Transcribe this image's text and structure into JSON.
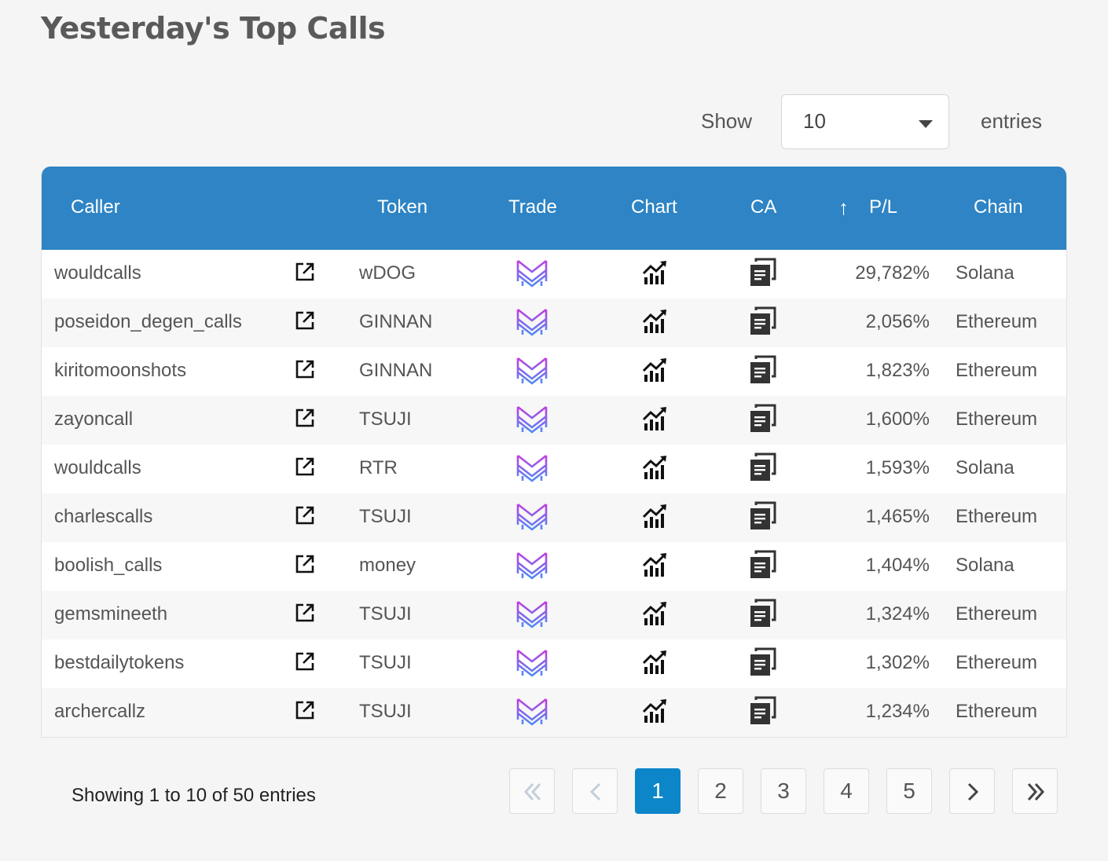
{
  "page": {
    "title": "Yesterday's Top Calls"
  },
  "length_menu": {
    "show_label": "Show",
    "selected": "10",
    "entries_label": "entries"
  },
  "table": {
    "headers": {
      "caller": "Caller",
      "token": "Token",
      "trade": "Trade",
      "chart": "Chart",
      "ca": "CA",
      "pl": "P/L",
      "chain": "Chain"
    },
    "sort_icon": "arrow-up-icon",
    "rows": [
      {
        "caller": "wouldcalls",
        "token": "wDOG",
        "pl": "29,782%",
        "chain": "Solana"
      },
      {
        "caller": "poseidon_degen_calls",
        "token": "GINNAN",
        "pl": "2,056%",
        "chain": "Ethereum"
      },
      {
        "caller": "kiritomoonshots",
        "token": "GINNAN",
        "pl": "1,823%",
        "chain": "Ethereum"
      },
      {
        "caller": "zayoncall",
        "token": "TSUJI",
        "pl": "1,600%",
        "chain": "Ethereum"
      },
      {
        "caller": "wouldcalls",
        "token": "RTR",
        "pl": "1,593%",
        "chain": "Solana"
      },
      {
        "caller": "charlescalls",
        "token": "TSUJI",
        "pl": "1,465%",
        "chain": "Ethereum"
      },
      {
        "caller": "boolish_calls",
        "token": "money",
        "pl": "1,404%",
        "chain": "Solana"
      },
      {
        "caller": "gemsmineeth",
        "token": "TSUJI",
        "pl": "1,324%",
        "chain": "Ethereum"
      },
      {
        "caller": "bestdailytokens",
        "token": "TSUJI",
        "pl": "1,302%",
        "chain": "Ethereum"
      },
      {
        "caller": "archercallz",
        "token": "TSUJI",
        "pl": "1,234%",
        "chain": "Ethereum"
      }
    ],
    "icons": {
      "link": "external-link-icon",
      "trade": "trade-logo-icon",
      "chart": "chart-trend-icon",
      "ca": "copy-icon"
    }
  },
  "footer": {
    "info": "Showing 1 to 10 of 50 entries",
    "pages": [
      "1",
      "2",
      "3",
      "4",
      "5"
    ],
    "current_page": "1"
  },
  "colors": {
    "header_bg": "#2e84c4",
    "active_page": "#0d86c9",
    "page_bg": "#f5f5f5"
  }
}
